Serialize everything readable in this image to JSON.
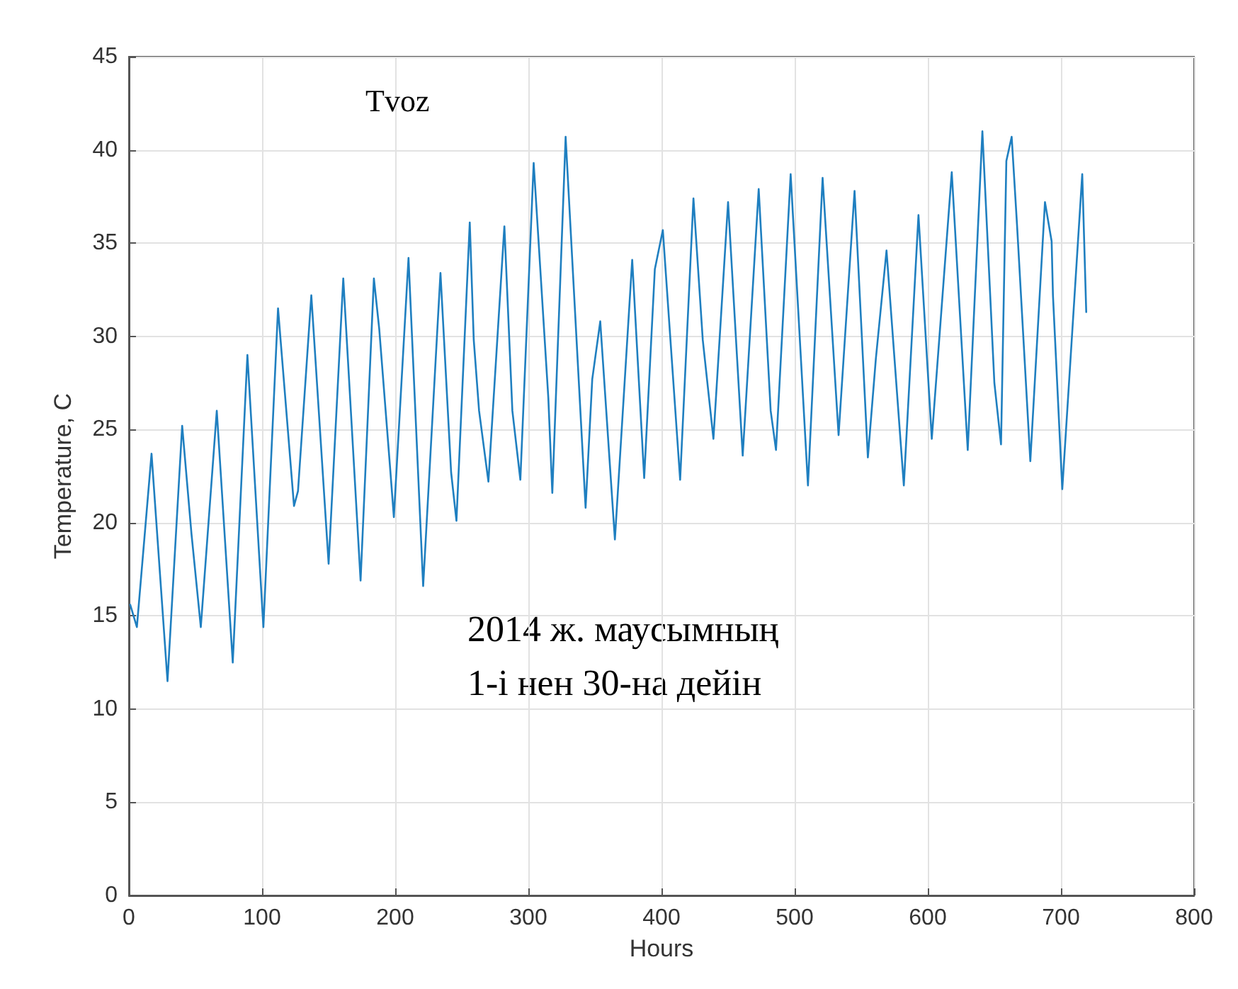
{
  "chart_data": {
    "type": "line",
    "title": "Tvoz",
    "xlabel": "Hours",
    "ylabel": "Temperature, C",
    "annotations": [
      "2014 ж. маусымның\n1-і нен 30-на дейін"
    ],
    "x": [
      1,
      6,
      17,
      29,
      40,
      47,
      54,
      66,
      78,
      89,
      101,
      112,
      124,
      127,
      137,
      150,
      161,
      174,
      184,
      188,
      196,
      199,
      210,
      221,
      234,
      242,
      246,
      256,
      259,
      263,
      270,
      282,
      288,
      294,
      304,
      315,
      318,
      328,
      343,
      348,
      354,
      365,
      378,
      387,
      395,
      401,
      414,
      424,
      431,
      439,
      450,
      461,
      473,
      482,
      486,
      497,
      510,
      521,
      533,
      545,
      555,
      561,
      569,
      582,
      593,
      603,
      618,
      630,
      641,
      650,
      655,
      659,
      663,
      667,
      677,
      688,
      693,
      694,
      701,
      716,
      719
    ],
    "series": [
      {
        "color": "#1f7fc0",
        "values": [
          15.6,
          14.4,
          23.7,
          11.5,
          25.2,
          19.4,
          14.4,
          26.0,
          12.5,
          29.0,
          14.4,
          31.5,
          20.9,
          21.7,
          32.2,
          17.8,
          33.1,
          16.9,
          33.1,
          30.4,
          23.1,
          20.3,
          34.2,
          16.6,
          33.4,
          22.7,
          20.1,
          36.1,
          29.8,
          26.0,
          22.2,
          35.9,
          26.0,
          22.3,
          39.3,
          26.7,
          21.6,
          40.7,
          20.8,
          27.7,
          30.8,
          19.1,
          34.1,
          22.4,
          33.6,
          35.7,
          22.3,
          37.4,
          29.8,
          24.5,
          37.2,
          23.6,
          37.9,
          26.0,
          23.9,
          38.7,
          22.0,
          38.5,
          24.7,
          37.8,
          23.5,
          28.8,
          34.6,
          22.0,
          36.5,
          24.5,
          38.8,
          23.9,
          41.0,
          27.5,
          24.2,
          39.4,
          40.7,
          36.0,
          23.3,
          37.2,
          35.1,
          32.2,
          21.8,
          38.7,
          31.3
        ]
      }
    ],
    "xlim": [
      0,
      800
    ],
    "xticks": [
      0,
      100,
      200,
      300,
      400,
      500,
      600,
      700,
      800
    ],
    "ylim": [
      0,
      45
    ],
    "yticks": [
      0,
      5,
      10,
      15,
      20,
      25,
      30,
      35,
      40,
      45
    ],
    "grid": true,
    "marker": "none",
    "line_style": "solid"
  }
}
